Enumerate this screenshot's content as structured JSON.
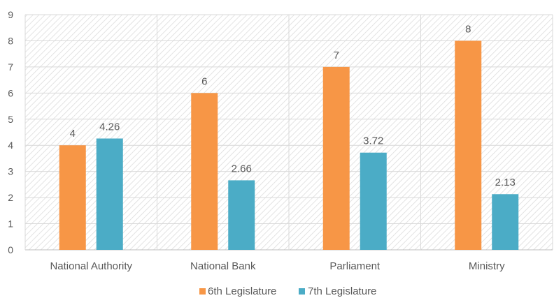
{
  "chart_data": {
    "type": "bar",
    "categories": [
      "National Authority",
      "National Bank",
      "Parliament",
      "Ministry"
    ],
    "series": [
      {
        "name": "6th Legislature",
        "values": [
          4,
          6,
          7,
          8
        ],
        "color": "#F79646"
      },
      {
        "name": "7th Legislature",
        "values": [
          4.26,
          2.66,
          3.72,
          2.13
        ],
        "color": "#4BACC6"
      }
    ],
    "data_labels": [
      [
        "4",
        "6",
        "7",
        "8"
      ],
      [
        "4.26",
        "2.66",
        "3.72",
        "2.13"
      ]
    ],
    "y_ticks": [
      "0",
      "1",
      "2",
      "3",
      "4",
      "5",
      "6",
      "7",
      "8",
      "9"
    ],
    "ylim": [
      0,
      9
    ],
    "grid": true,
    "plot_background": "hatched",
    "legend_position": "bottom",
    "title": "",
    "xlabel": "",
    "ylabel": ""
  }
}
